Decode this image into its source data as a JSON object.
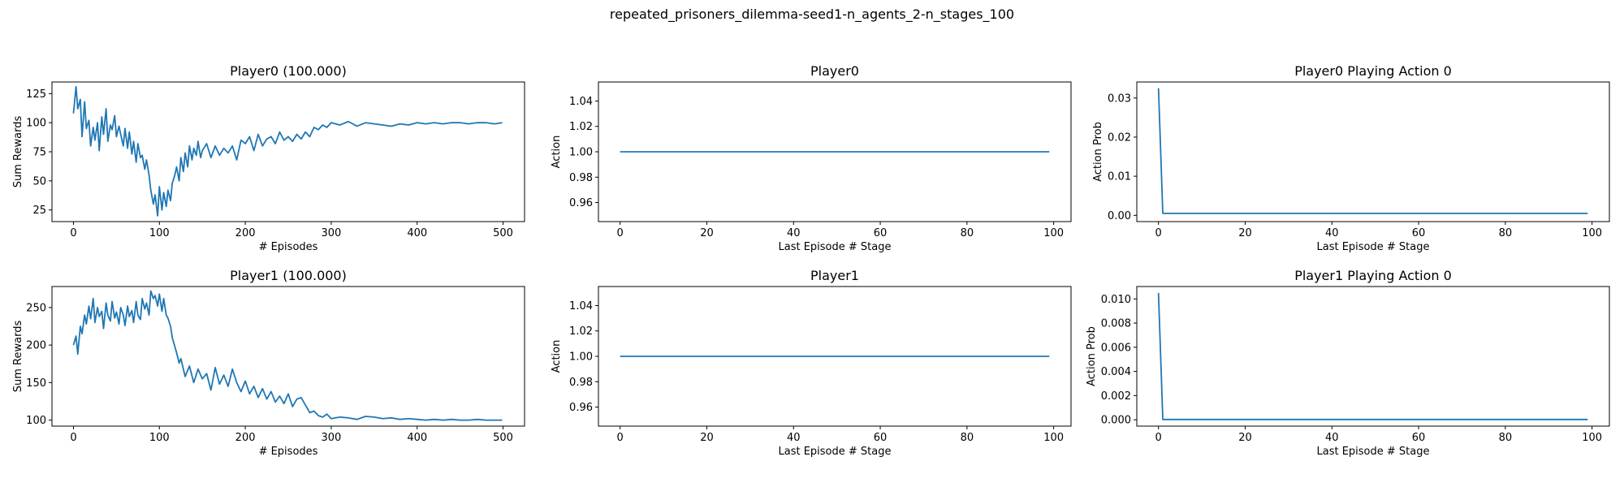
{
  "figure": {
    "suptitle": "repeated_prisoners_dilemma-seed1-n_agents_2-n_stages_100"
  },
  "colors": {
    "line": "#1f77b4",
    "axes": "#000000",
    "background": "#ffffff"
  },
  "chart_data": [
    {
      "id": "p0_rewards",
      "type": "line",
      "title": "Player0 (100.000)",
      "xlabel": "# Episodes",
      "ylabel": "Sum Rewards",
      "xlim": [
        -25,
        525
      ],
      "ylim": [
        15,
        135
      ],
      "xticks": [
        0,
        100,
        200,
        300,
        400,
        500
      ],
      "yticks": [
        25,
        50,
        75,
        100,
        125
      ],
      "ytick_labels": [
        "25",
        "50",
        "75",
        "100",
        "125"
      ],
      "grid": false,
      "series": [
        {
          "values_x": [
            0,
            3,
            5,
            8,
            10,
            13,
            15,
            18,
            20,
            23,
            25,
            28,
            30,
            33,
            35,
            38,
            40,
            43,
            45,
            48,
            50,
            53,
            55,
            58,
            60,
            63,
            65,
            68,
            70,
            73,
            75,
            78,
            80,
            83,
            85,
            88,
            90,
            93,
            95,
            98,
            100,
            103,
            105,
            108,
            110,
            113,
            115,
            118,
            120,
            123,
            125,
            128,
            130,
            133,
            135,
            138,
            140,
            143,
            145,
            148,
            150,
            155,
            160,
            165,
            170,
            175,
            180,
            185,
            190,
            195,
            200,
            205,
            210,
            215,
            220,
            225,
            230,
            235,
            240,
            245,
            250,
            255,
            260,
            265,
            270,
            275,
            280,
            285,
            290,
            295,
            300,
            310,
            320,
            330,
            340,
            350,
            360,
            370,
            380,
            390,
            400,
            410,
            420,
            430,
            440,
            450,
            460,
            470,
            480,
            490,
            499
          ],
          "values_y": [
            108,
            131,
            112,
            120,
            88,
            118,
            95,
            102,
            80,
            96,
            85,
            100,
            76,
            105,
            90,
            112,
            84,
            98,
            94,
            106,
            88,
            97,
            90,
            80,
            95,
            78,
            92,
            73,
            84,
            66,
            82,
            70,
            72,
            60,
            68,
            55,
            42,
            30,
            38,
            20,
            45,
            25,
            40,
            28,
            42,
            33,
            48,
            55,
            62,
            50,
            70,
            58,
            74,
            62,
            80,
            68,
            78,
            72,
            84,
            70,
            76,
            82,
            70,
            80,
            72,
            78,
            74,
            80,
            68,
            85,
            82,
            88,
            76,
            90,
            80,
            86,
            88,
            82,
            92,
            85,
            88,
            84,
            90,
            86,
            92,
            88,
            96,
            94,
            98,
            96,
            100,
            98,
            101,
            97,
            100,
            99,
            98,
            97,
            99,
            98,
            100,
            99,
            100,
            99,
            100,
            100,
            99,
            100,
            100,
            99,
            100
          ]
        }
      ]
    },
    {
      "id": "p0_action",
      "type": "line",
      "title": "Player0",
      "xlabel": "Last Episode # Stage",
      "ylabel": "Action",
      "xlim": [
        -5,
        104
      ],
      "ylim": [
        0.945,
        1.055
      ],
      "xticks": [
        0,
        20,
        40,
        60,
        80,
        100
      ],
      "yticks": [
        0.96,
        0.98,
        1.0,
        1.02,
        1.04
      ],
      "ytick_labels": [
        "0.96",
        "0.98",
        "1.00",
        "1.02",
        "1.04"
      ],
      "grid": false,
      "series": [
        {
          "values_x": [
            0,
            99
          ],
          "values_y": [
            1.0,
            1.0
          ]
        }
      ]
    },
    {
      "id": "p0_prob",
      "type": "line",
      "title": "Player0 Playing Action 0",
      "xlabel": "Last Episode # Stage",
      "ylabel": "Action Prob",
      "xlim": [
        -5,
        104
      ],
      "ylim": [
        -0.0016,
        0.0341
      ],
      "xticks": [
        0,
        20,
        40,
        60,
        80,
        100
      ],
      "yticks": [
        0.0,
        0.01,
        0.02,
        0.03
      ],
      "ytick_labels": [
        "0.00",
        "0.01",
        "0.02",
        "0.03"
      ],
      "grid": false,
      "series": [
        {
          "values_x": [
            0,
            1,
            99
          ],
          "values_y": [
            0.0325,
            0.0005,
            0.0005
          ]
        }
      ]
    },
    {
      "id": "p1_rewards",
      "type": "line",
      "title": "Player1 (100.000)",
      "xlabel": "# Episodes",
      "ylabel": "Sum Rewards",
      "xlim": [
        -25,
        525
      ],
      "ylim": [
        92,
        278
      ],
      "xticks": [
        0,
        100,
        200,
        300,
        400,
        500
      ],
      "yticks": [
        100,
        150,
        200,
        250
      ],
      "ytick_labels": [
        "100",
        "150",
        "200",
        "250"
      ],
      "grid": false,
      "series": [
        {
          "values_x": [
            0,
            3,
            5,
            8,
            10,
            13,
            15,
            18,
            20,
            23,
            25,
            28,
            30,
            33,
            35,
            38,
            40,
            43,
            45,
            48,
            50,
            53,
            55,
            58,
            60,
            63,
            65,
            68,
            70,
            73,
            75,
            78,
            80,
            83,
            85,
            88,
            90,
            93,
            95,
            98,
            100,
            103,
            105,
            108,
            110,
            113,
            115,
            118,
            120,
            123,
            125,
            130,
            135,
            140,
            145,
            150,
            155,
            160,
            165,
            170,
            175,
            180,
            185,
            190,
            195,
            200,
            205,
            210,
            215,
            220,
            225,
            230,
            235,
            240,
            245,
            250,
            255,
            260,
            265,
            270,
            275,
            280,
            285,
            290,
            295,
            300,
            310,
            320,
            330,
            340,
            350,
            360,
            370,
            380,
            390,
            400,
            410,
            420,
            430,
            440,
            450,
            460,
            470,
            480,
            490,
            499
          ],
          "values_y": [
            200,
            212,
            188,
            225,
            215,
            240,
            228,
            252,
            235,
            262,
            230,
            250,
            238,
            245,
            222,
            256,
            240,
            232,
            258,
            236,
            244,
            228,
            250,
            240,
            226,
            252,
            238,
            246,
            230,
            258,
            240,
            234,
            262,
            248,
            256,
            240,
            272,
            262,
            266,
            252,
            268,
            245,
            262,
            240,
            236,
            225,
            210,
            198,
            190,
            176,
            182,
            158,
            172,
            150,
            168,
            155,
            162,
            140,
            170,
            148,
            160,
            145,
            168,
            150,
            138,
            152,
            135,
            145,
            130,
            142,
            128,
            138,
            124,
            132,
            122,
            135,
            118,
            128,
            130,
            120,
            110,
            112,
            106,
            104,
            108,
            102,
            104,
            103,
            101,
            105,
            104,
            102,
            103,
            101,
            102,
            101,
            100,
            101,
            100,
            101,
            100,
            100,
            101,
            100,
            100,
            100
          ]
        }
      ]
    },
    {
      "id": "p1_action",
      "type": "line",
      "title": "Player1",
      "xlabel": "Last Episode # Stage",
      "ylabel": "Action",
      "xlim": [
        -5,
        104
      ],
      "ylim": [
        0.945,
        1.055
      ],
      "xticks": [
        0,
        20,
        40,
        60,
        80,
        100
      ],
      "yticks": [
        0.96,
        0.98,
        1.0,
        1.02,
        1.04
      ],
      "ytick_labels": [
        "0.96",
        "0.98",
        "1.00",
        "1.02",
        "1.04"
      ],
      "grid": false,
      "series": [
        {
          "values_x": [
            0,
            99
          ],
          "values_y": [
            1.0,
            1.0
          ]
        }
      ]
    },
    {
      "id": "p1_prob",
      "type": "line",
      "title": "Player1 Playing Action 0",
      "xlabel": "Last Episode # Stage",
      "ylabel": "Action Prob",
      "xlim": [
        -5,
        104
      ],
      "ylim": [
        -0.00053,
        0.01103
      ],
      "xticks": [
        0,
        20,
        40,
        60,
        80,
        100
      ],
      "yticks": [
        0.0,
        0.002,
        0.004,
        0.006,
        0.008,
        0.01
      ],
      "ytick_labels": [
        "0.000",
        "0.002",
        "0.004",
        "0.006",
        "0.008",
        "0.010"
      ],
      "grid": false,
      "series": [
        {
          "values_x": [
            0,
            1,
            99
          ],
          "values_y": [
            0.0105,
            2e-05,
            2e-05
          ]
        }
      ]
    }
  ]
}
